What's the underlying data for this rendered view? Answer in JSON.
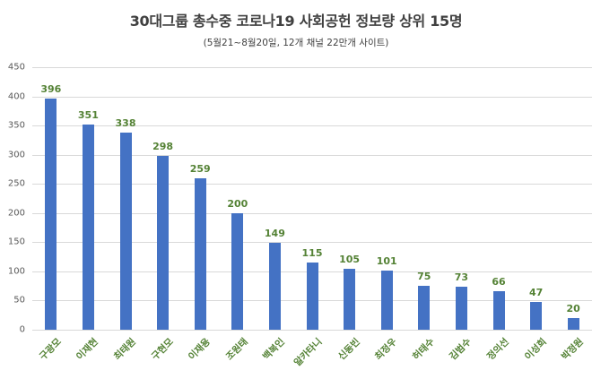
{
  "title": "30대그룹 총수중 코로나19 사회공헌 정보량 상위 15명",
  "subtitle": "(5월21~8월20일, 12개 채널 22만개 사이트)",
  "colors": {
    "bar": "#4472c4",
    "data_label": "#548235",
    "category_label": "#548235",
    "grid": "#d9d9d9",
    "axis_text": "#595959"
  },
  "chart_data": {
    "type": "bar",
    "title": "30대그룹 총수중 코로나19 사회공헌 정보량 상위 15명",
    "subtitle": "(5월21~8월20일, 12개 채널 22만개 사이트)",
    "xlabel": "",
    "ylabel": "",
    "ylim": [
      0,
      450
    ],
    "yticks": [
      0,
      50,
      100,
      150,
      200,
      250,
      300,
      350,
      400,
      450
    ],
    "grid": true,
    "legend": null,
    "categories": [
      "구광모",
      "이재현",
      "최태원",
      "구현모",
      "이재용",
      "조원태",
      "백복인",
      "알카타니",
      "신동빈",
      "최정우",
      "허태수",
      "김범수",
      "정의선",
      "이성희",
      "박정원"
    ],
    "values": [
      396,
      351,
      338,
      298,
      259,
      200,
      149,
      115,
      105,
      101,
      75,
      73,
      66,
      47,
      20
    ],
    "data_labels": true
  }
}
